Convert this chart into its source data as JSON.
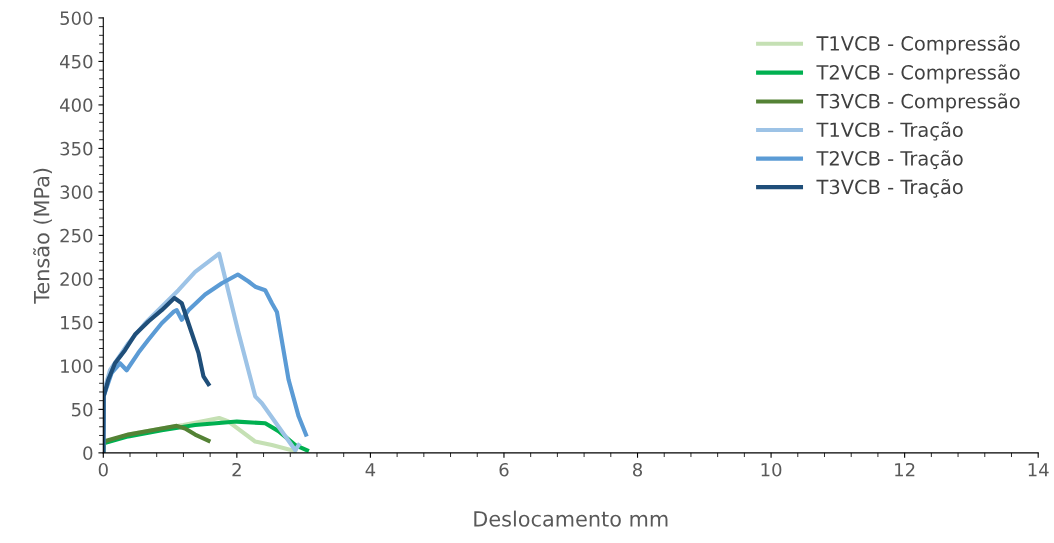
{
  "chart_data": {
    "type": "line",
    "xlabel": "Deslocamento mm",
    "ylabel": "Tensão (MPa)",
    "xlim": [
      0,
      14
    ],
    "ylim": [
      0,
      500
    ],
    "xticks": [
      0,
      2,
      4,
      6,
      8,
      10,
      12,
      14
    ],
    "yticks": [
      0,
      50,
      100,
      150,
      200,
      250,
      300,
      350,
      400,
      450,
      500
    ],
    "grid": false,
    "legend": "top right",
    "marker": "none",
    "line_style": "solid",
    "series": [
      {
        "name": "T1VCB - Compressão",
        "color": "#c5e0b4",
        "x": [
          0,
          0.005,
          0.375,
          0.875,
          1.2,
          1.735,
          1.875,
          2.275,
          2.525,
          2.875
        ],
        "values": [
          0,
          11,
          21,
          28,
          32,
          40,
          36,
          13,
          9,
          2
        ]
      },
      {
        "name": "T2VCB - Compressão",
        "color": "#00b050",
        "x": [
          0,
          0.005,
          0.375,
          0.875,
          1.375,
          2.0,
          2.425,
          2.625,
          2.875,
          3.05
        ],
        "values": [
          0,
          11,
          19,
          26,
          32,
          36,
          34,
          25,
          9,
          3
        ]
      },
      {
        "name": "T3VCB - Compressão",
        "color": "#548235",
        "x": [
          0,
          0.005,
          0.375,
          0.875,
          1.1,
          1.225,
          1.375,
          1.575
        ],
        "values": [
          0,
          13,
          21,
          28,
          31,
          28,
          21,
          14
        ]
      },
      {
        "name": "T1VCB - Tração",
        "color": "#9dc3e6",
        "x": [
          0,
          0.005,
          0.1,
          0.375,
          0.625,
          0.875,
          1.125,
          1.375,
          1.735,
          2.025,
          2.275,
          2.375,
          2.875,
          2.925
        ],
        "values": [
          0,
          69,
          95,
          126,
          149,
          168,
          187,
          208,
          229,
          138,
          65,
          57,
          3,
          9
        ]
      },
      {
        "name": "T2VCB - Tração",
        "color": "#5b9bd5",
        "x": [
          0,
          0.005,
          0.125,
          0.25,
          0.35,
          0.525,
          0.675,
          0.875,
          1.05,
          1.1,
          1.175,
          1.275,
          1.525,
          1.775,
          2.015,
          2.175,
          2.275,
          2.425,
          2.525,
          2.6,
          2.775,
          2.925,
          3.035
        ],
        "values": [
          0,
          65,
          92,
          103,
          95,
          115,
          130,
          149,
          162,
          164,
          153,
          164,
          182,
          195,
          205,
          197,
          191,
          187,
          172,
          162,
          84,
          42,
          21
        ]
      },
      {
        "name": "T3VCB - Tração",
        "color": "#1f4e79",
        "x": [
          0,
          0.005,
          0.075,
          0.175,
          0.325,
          0.475,
          0.675,
          0.875,
          1.065,
          1.175,
          1.275,
          1.425,
          1.5,
          1.575
        ],
        "values": [
          0,
          65,
          84,
          103,
          118,
          136,
          151,
          164,
          178,
          172,
          149,
          115,
          88,
          79
        ]
      }
    ]
  }
}
